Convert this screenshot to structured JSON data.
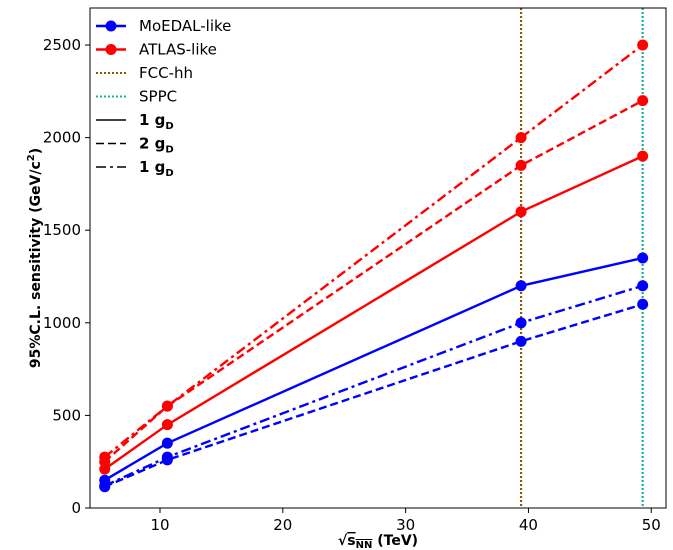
{
  "chart_data": {
    "type": "line",
    "xlabel_prefix": "√",
    "xlabel_var": "s",
    "xlabel_sub": "NN",
    "xlabel_unit": " (TeV)",
    "ylabel_main": "95%C.L. sensitivity (GeV/c",
    "ylabel_sup": "2",
    "ylabel_close": ")",
    "xlim": [
      4.3,
      51.2
    ],
    "ylim": [
      0,
      2700
    ],
    "xticks": [
      10,
      20,
      30,
      40,
      50
    ],
    "yticks": [
      0,
      500,
      1000,
      1500,
      2000,
      2500
    ],
    "grid": false,
    "legend_position": "top-left",
    "series": [
      {
        "name": "MoEDAL-like",
        "legend": true,
        "color": "#0000ff",
        "style": "solid",
        "marker": true,
        "x": [
          5.5,
          10.6,
          39.4,
          49.3
        ],
        "y": [
          150,
          350,
          1200,
          1350
        ]
      },
      {
        "name": "ATLAS-like",
        "legend": true,
        "color": "#ff0000",
        "style": "solid",
        "marker": true,
        "x": [
          5.5,
          10.6,
          39.4,
          49.3
        ],
        "y": [
          210,
          450,
          1600,
          1900
        ]
      },
      {
        "legend": false,
        "color": "#0000ff",
        "style": "dashed",
        "marker": true,
        "x": [
          5.5,
          10.6,
          39.4,
          49.3
        ],
        "y": [
          115,
          260,
          900,
          1100
        ]
      },
      {
        "legend": false,
        "color": "#ff0000",
        "style": "dashed",
        "marker": true,
        "x": [
          5.5,
          10.6,
          39.4,
          49.3
        ],
        "y": [
          250,
          550,
          1850,
          2200
        ]
      },
      {
        "legend": false,
        "color": "#0000ff",
        "style": "dashdot",
        "marker": true,
        "x": [
          5.5,
          10.6,
          39.4,
          49.3
        ],
        "y": [
          120,
          275,
          1000,
          1200
        ]
      },
      {
        "legend": false,
        "color": "#ff0000",
        "style": "dashdot",
        "marker": true,
        "x": [
          5.5,
          10.6,
          39.4,
          49.3
        ],
        "y": [
          275,
          550,
          2000,
          2500
        ]
      }
    ],
    "vlines": [
      {
        "name": "FCC-hh",
        "x": 39.4,
        "color": "#8b5a00"
      },
      {
        "name": "SPPC",
        "x": 49.3,
        "color": "#17b29a"
      }
    ],
    "legend": [
      {
        "label": "MoEDAL-like",
        "kind": "marker",
        "color": "#0000ff",
        "style": "solid",
        "bold": false
      },
      {
        "label": "ATLAS-like",
        "kind": "marker",
        "color": "#ff0000",
        "style": "solid",
        "bold": false
      },
      {
        "label": "FCC-hh",
        "kind": "line",
        "color": "#8b5a00",
        "style": "dotted",
        "bold": false
      },
      {
        "label": "SPPC",
        "kind": "line",
        "color": "#17b29a",
        "style": "dotted",
        "bold": false
      },
      {
        "label": "1 g",
        "sub": "D",
        "kind": "line",
        "color": "#000000",
        "style": "solid",
        "bold": true
      },
      {
        "label": "2 g",
        "sub": "D",
        "kind": "line",
        "color": "#000000",
        "style": "dashed",
        "bold": true
      },
      {
        "label": "1 g",
        "sub": "D",
        "kind": "line",
        "color": "#000000",
        "style": "dashdot",
        "bold": true
      }
    ]
  }
}
